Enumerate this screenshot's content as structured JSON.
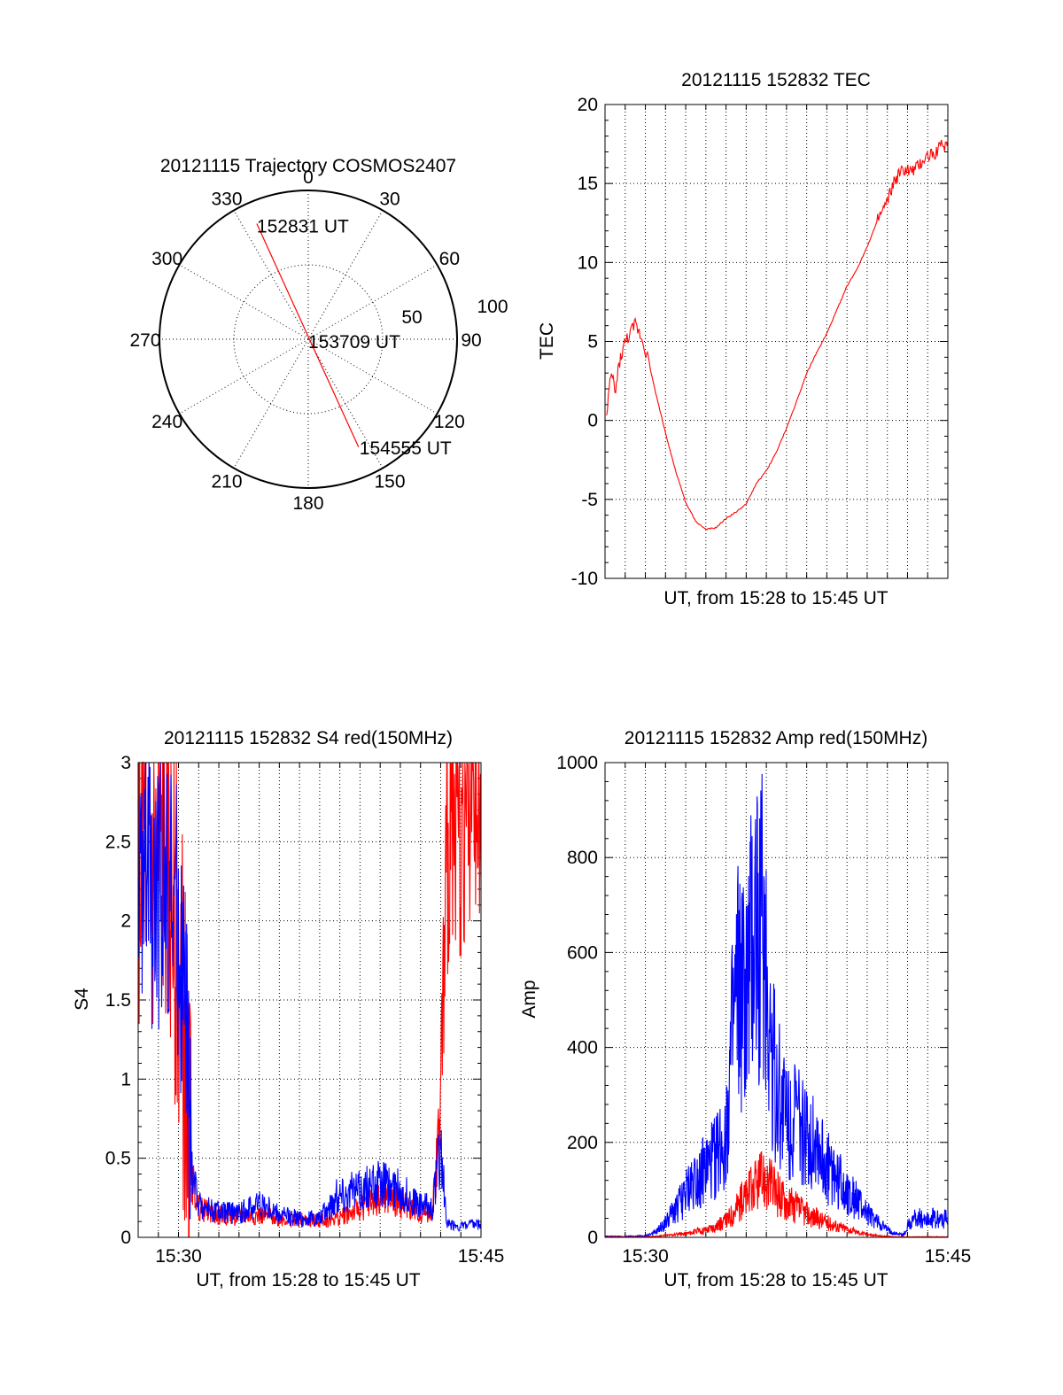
{
  "colors": {
    "red": "#ff0000",
    "blue": "#0000ff",
    "axis": "#000000",
    "background": "#ffffff"
  },
  "chart_data": [
    {
      "id": "trajectory",
      "type": "polar",
      "title": "20121115 Trajectory COSMOS2407",
      "azimuth_labels": [
        "0",
        "30",
        "60",
        "90",
        "120",
        "150",
        "180",
        "210",
        "240",
        "270",
        "300",
        "330"
      ],
      "radius_labels": [
        "50",
        "100"
      ],
      "r_max": 100,
      "track_color": "red",
      "track": [
        {
          "az": 336,
          "r": 85,
          "label": "152831 UT"
        },
        {
          "az": 0,
          "r": 0,
          "label": "153709 UT"
        },
        {
          "az": 155,
          "r": 80,
          "label": "154555 UT"
        }
      ]
    },
    {
      "id": "tec",
      "type": "line",
      "title": "20121115 152832 TEC",
      "xlabel": "UT, from 15:28 to 15:45 UT",
      "ylabel": "TEC",
      "xlim": [
        0,
        17
      ],
      "ylim": [
        -10,
        20
      ],
      "yticks": [
        "-10",
        "-5",
        "0",
        "5",
        "10",
        "15",
        "20"
      ],
      "series": [
        {
          "name": "TEC",
          "color": "red",
          "x": [
            0.05,
            0.2,
            0.35,
            0.5,
            0.7,
            0.9,
            1.1,
            1.3,
            1.5,
            1.8,
            2.1,
            2.5,
            3.0,
            3.5,
            4.0,
            4.5,
            5.0,
            5.5,
            6.0,
            6.5,
            7.0,
            7.5,
            8.0,
            8.5,
            9.0,
            9.5,
            10.0,
            10.5,
            11.0,
            11.5,
            12.0,
            12.5,
            13.0,
            13.5,
            14.0,
            14.3,
            14.6,
            14.9,
            15.2,
            15.5,
            15.8,
            16.1,
            16.4,
            16.6,
            16.8,
            17.0
          ],
          "y": [
            -0.2,
            1.8,
            3.1,
            1.6,
            3.6,
            4.6,
            5.2,
            5.6,
            6.1,
            5.3,
            4.1,
            1.8,
            -0.8,
            -3.2,
            -5.2,
            -6.4,
            -6.9,
            -6.8,
            -6.2,
            -5.8,
            -5.3,
            -4.0,
            -3.2,
            -2.0,
            -0.5,
            1.2,
            3.0,
            4.3,
            5.5,
            7.0,
            8.5,
            9.6,
            11.0,
            12.6,
            13.8,
            15.0,
            15.6,
            15.9,
            15.7,
            16.0,
            16.5,
            16.8,
            17.0,
            17.3,
            17.4,
            17.5
          ]
        }
      ]
    },
    {
      "id": "s4",
      "type": "line",
      "title": "20121115 152832 S4 red(150MHz)",
      "xlabel": "UT, from 15:28 to 15:45 UT",
      "ylabel": "S4",
      "xlim": [
        0,
        17
      ],
      "ylim": [
        0,
        3
      ],
      "xtick_labels": [
        {
          "x": 2,
          "label": "15:30"
        },
        {
          "x": 17,
          "label": "15:45"
        }
      ],
      "yticks": [
        "0",
        "0.5",
        "1",
        "1.5",
        "2",
        "2.5",
        "3"
      ],
      "series": [
        {
          "name": "red",
          "color": "red",
          "x": [
            0.0,
            0.4,
            0.8,
            1.2,
            1.6,
            2.0,
            2.3,
            2.6,
            3.0,
            4.0,
            5.0,
            6.0,
            7.0,
            8.0,
            9.0,
            10.0,
            11.0,
            12.0,
            13.0,
            14.0,
            14.6,
            15.0,
            15.3,
            15.6,
            16.0,
            16.4,
            16.8,
            17.0
          ],
          "y": [
            2.4,
            2.6,
            2.2,
            2.5,
            2.3,
            1.8,
            1.2,
            0.4,
            0.18,
            0.14,
            0.13,
            0.14,
            0.12,
            0.11,
            0.1,
            0.13,
            0.18,
            0.25,
            0.22,
            0.15,
            0.17,
            0.8,
            2.3,
            2.7,
            2.5,
            2.8,
            2.6,
            2.4
          ]
        },
        {
          "name": "blue",
          "color": "blue",
          "x": [
            0.0,
            0.4,
            0.8,
            1.2,
            1.6,
            2.0,
            2.3,
            2.6,
            3.0,
            4.0,
            5.0,
            6.0,
            7.0,
            8.0,
            9.0,
            10.0,
            11.0,
            12.0,
            13.0,
            14.0,
            14.6,
            15.0,
            15.3,
            15.6,
            16.0,
            16.4,
            16.8,
            17.0
          ],
          "y": [
            2.1,
            2.4,
            2.0,
            2.3,
            2.2,
            1.9,
            1.4,
            0.5,
            0.2,
            0.16,
            0.15,
            0.22,
            0.14,
            0.12,
            0.12,
            0.28,
            0.3,
            0.34,
            0.3,
            0.2,
            0.2,
            0.6,
            0.08,
            0.08,
            0.07,
            0.08,
            0.08,
            0.08
          ]
        }
      ]
    },
    {
      "id": "amp",
      "type": "line",
      "title": "20121115 152832 Amp red(150MHz)",
      "xlabel": "UT, from 15:28 to 15:45 UT",
      "ylabel": "Amp",
      "xlim": [
        0,
        17
      ],
      "ylim": [
        0,
        1000
      ],
      "xtick_labels": [
        {
          "x": 2,
          "label": "15:30"
        },
        {
          "x": 17,
          "label": "15:45"
        }
      ],
      "yticks": [
        "0",
        "200",
        "400",
        "600",
        "800",
        "1000"
      ],
      "series": [
        {
          "name": "blue",
          "color": "blue",
          "x": [
            0.0,
            1.0,
            2.0,
            2.5,
            3.0,
            3.5,
            4.0,
            4.5,
            5.0,
            5.5,
            6.0,
            6.3,
            6.6,
            7.0,
            7.3,
            7.6,
            7.9,
            8.2,
            8.5,
            8.8,
            9.2,
            9.6,
            10.0,
            10.4,
            10.8,
            11.2,
            11.6,
            12.0,
            12.4,
            12.8,
            13.2,
            13.6,
            14.0,
            14.4,
            14.8,
            15.2,
            15.6,
            16.0,
            16.5,
            17.0
          ],
          "y": [
            2,
            2,
            3,
            10,
            30,
            60,
            90,
            130,
            140,
            170,
            220,
            400,
            520,
            480,
            600,
            680,
            620,
            420,
            320,
            280,
            260,
            240,
            200,
            220,
            160,
            140,
            120,
            100,
            80,
            60,
            40,
            30,
            15,
            8,
            5,
            38,
            40,
            40,
            39,
            40
          ]
        },
        {
          "name": "red",
          "color": "red",
          "x": [
            0.0,
            1.0,
            2.0,
            2.5,
            3.0,
            3.5,
            4.0,
            4.5,
            5.0,
            5.5,
            6.0,
            6.3,
            6.6,
            7.0,
            7.3,
            7.6,
            7.9,
            8.2,
            8.5,
            8.8,
            9.2,
            9.6,
            10.0,
            10.4,
            10.8,
            11.2,
            11.6,
            12.0,
            12.4,
            12.8,
            13.2,
            13.6,
            14.0,
            14.4,
            14.8,
            15.2,
            15.6,
            16.0,
            16.5,
            17.0
          ],
          "y": [
            1,
            1,
            1,
            2,
            4,
            6,
            8,
            12,
            16,
            24,
            34,
            50,
            70,
            85,
            100,
            115,
            125,
            110,
            95,
            85,
            70,
            60,
            50,
            42,
            35,
            28,
            22,
            18,
            12,
            8,
            5,
            3,
            2,
            1,
            1,
            1,
            1,
            1,
            1,
            1
          ]
        }
      ]
    }
  ]
}
